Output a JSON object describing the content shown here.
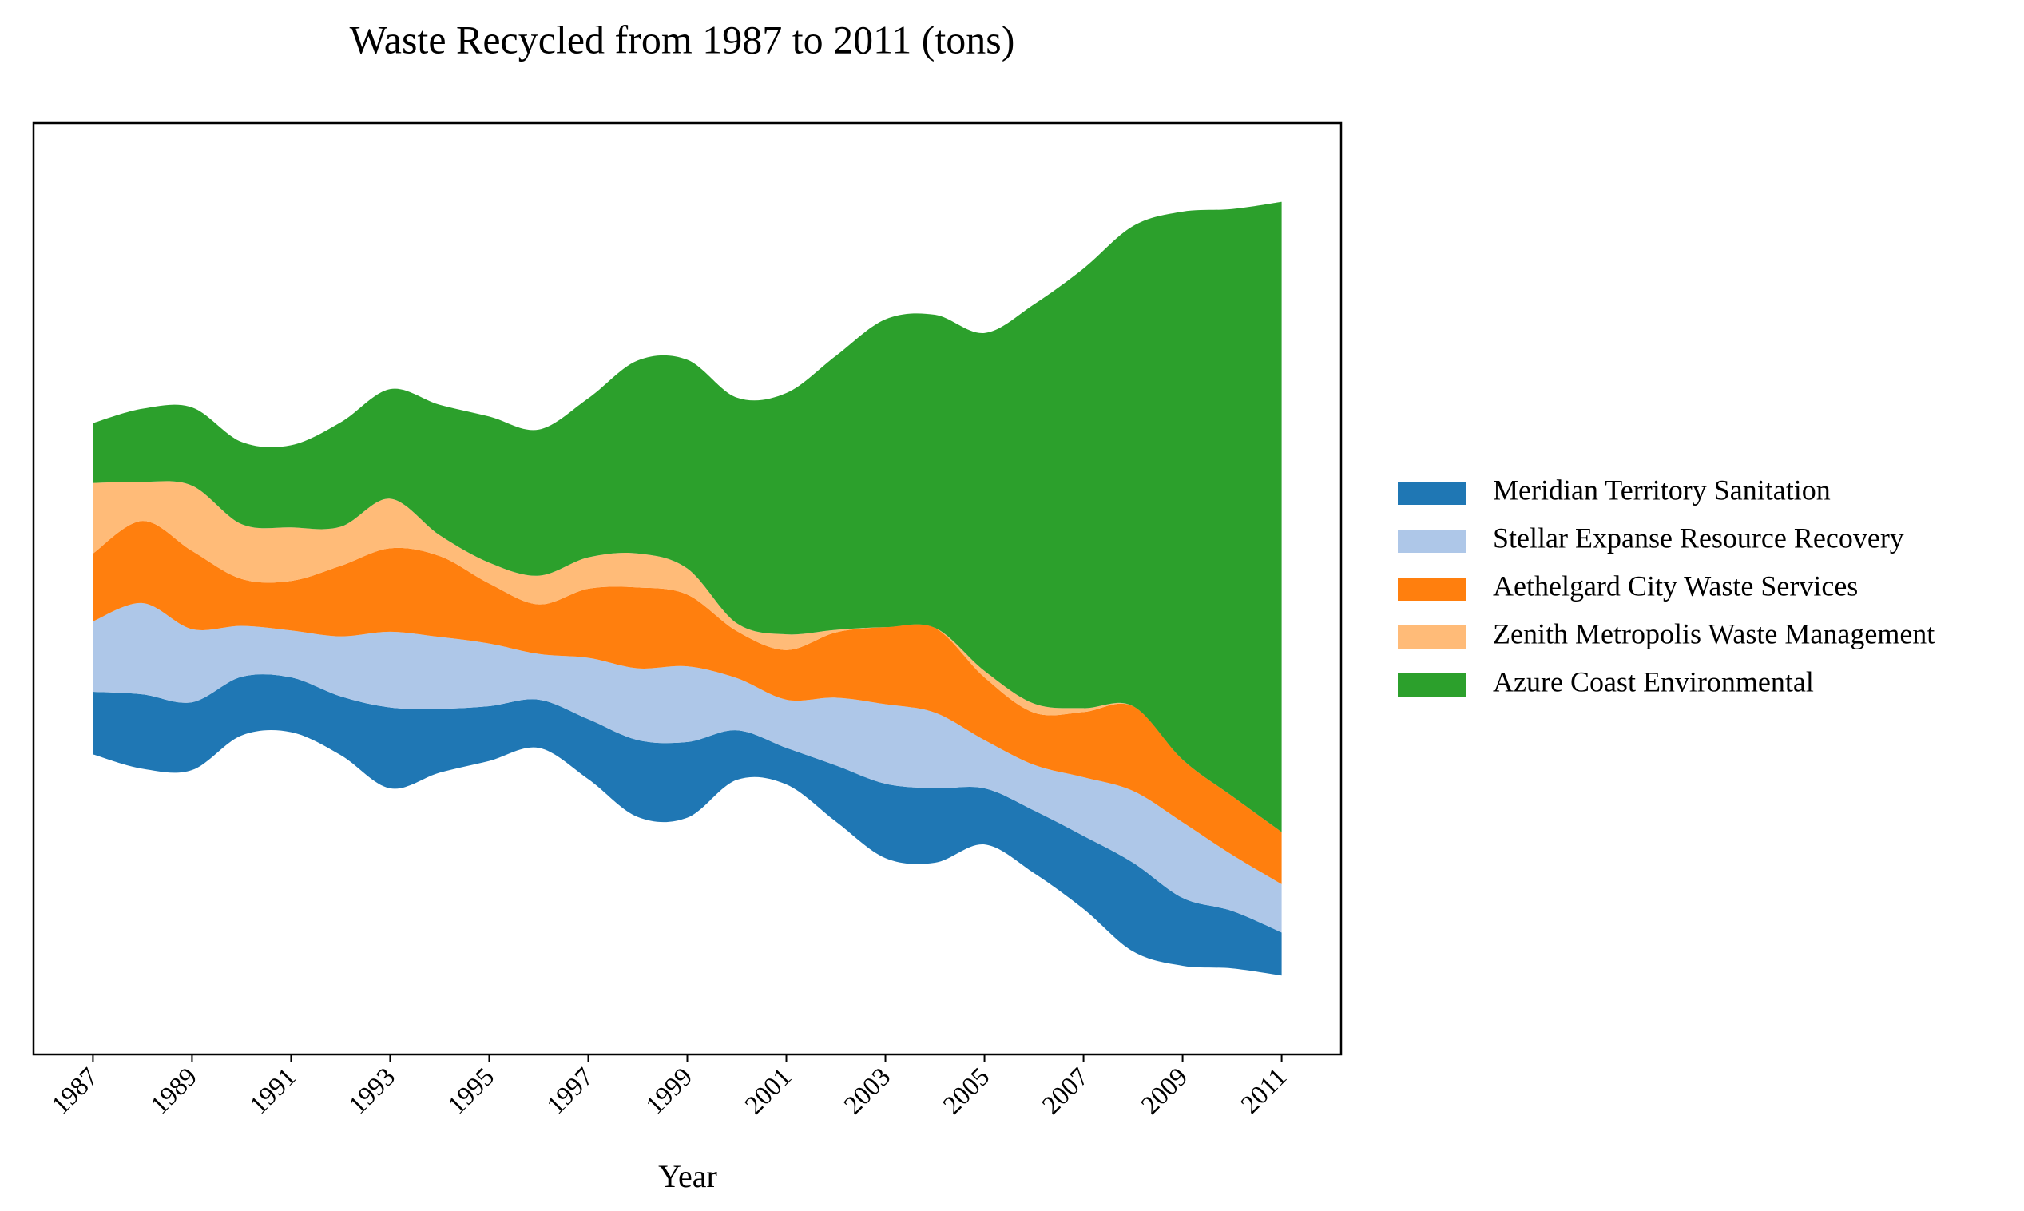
{
  "chart_data": {
    "type": "streamgraph",
    "baseline": "sym",
    "title": "Waste Recycled from 1987 to 2011 (tons)",
    "x_label": "Year",
    "x": [
      1987,
      1988,
      1989,
      1990,
      1991,
      1992,
      1993,
      1994,
      1995,
      1996,
      1997,
      1998,
      1999,
      2000,
      2001,
      2002,
      2003,
      2004,
      2005,
      2006,
      2007,
      2008,
      2009,
      2010,
      2011
    ],
    "xlim": [
      1985.8,
      2012.2
    ],
    "xticks": [
      1987,
      1989,
      1991,
      1993,
      1995,
      1997,
      1999,
      2001,
      2003,
      2005,
      2007,
      2009,
      2011
    ],
    "legend": "outside right",
    "series": [
      {
        "name": "Meridian Territory Sanitation",
        "color": "#1f77b4",
        "values": [
          48,
          57,
          52,
          45,
          42,
          45,
          62,
          49,
          42,
          37,
          46,
          59,
          58,
          38,
          28,
          43,
          57,
          57,
          43,
          48,
          56,
          68,
          52,
          44,
          33
        ]
      },
      {
        "name": "Stellar Expanse Resource Recovery",
        "color": "#aec7e8",
        "values": [
          54,
          70,
          56,
          39,
          36,
          46,
          58,
          55,
          48,
          35,
          47,
          55,
          58,
          40,
          37,
          52,
          61,
          58,
          37,
          35,
          45,
          55,
          58,
          43,
          37
        ]
      },
      {
        "name": "Aethelgard City Waste Services",
        "color": "#ff7f0e",
        "values": [
          52,
          63,
          60,
          36,
          38,
          54,
          64,
          62,
          46,
          38,
          53,
          62,
          55,
          36,
          38,
          50,
          59,
          65,
          48,
          40,
          50,
          65,
          48,
          45,
          40
        ]
      },
      {
        "name": "Zenith Metropolis Waste Management",
        "color": "#ffbb78",
        "values": [
          54,
          30,
          50,
          42,
          41,
          30,
          38,
          16,
          16,
          22,
          24,
          26,
          20,
          6,
          12,
          2,
          0,
          0,
          5,
          7,
          3,
          0,
          0,
          0,
          0
        ]
      },
      {
        "name": "Azure Coast Environmental",
        "color": "#2ca02c",
        "values": [
          46,
          56,
          60,
          63,
          63,
          80,
          84,
          100,
          112,
          112,
          122,
          148,
          160,
          173,
          185,
          210,
          236,
          240,
          259,
          306,
          337,
          368,
          420,
          450,
          483
        ]
      }
    ]
  }
}
